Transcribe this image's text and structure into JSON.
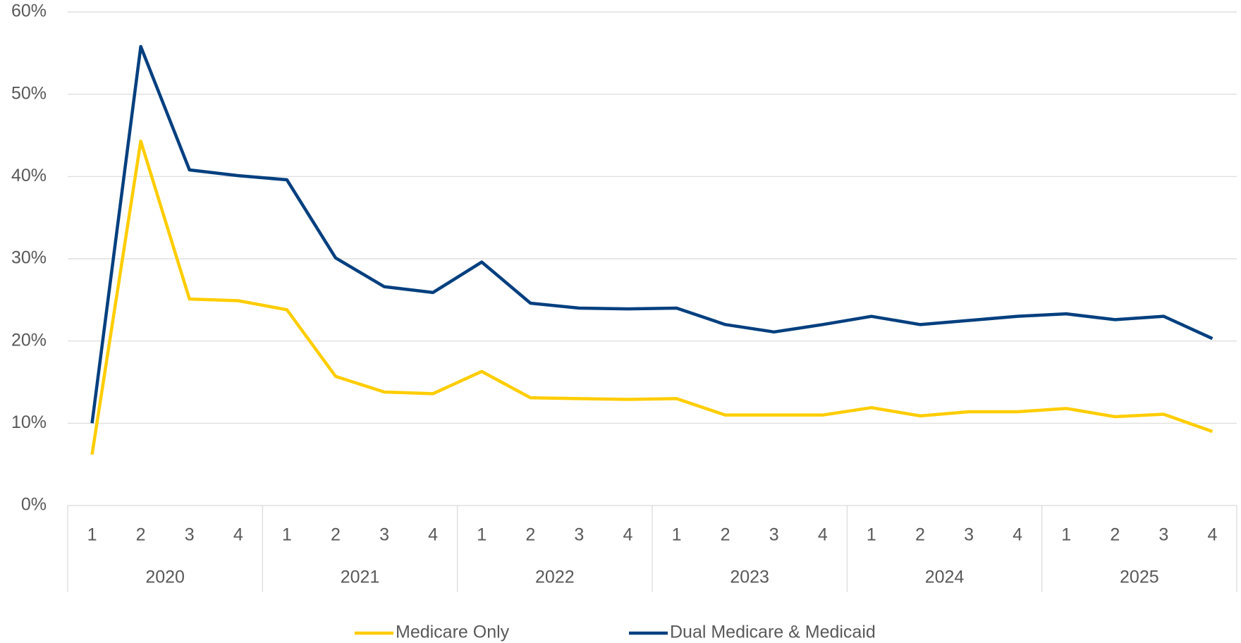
{
  "chart_data": {
    "type": "line",
    "categories": [
      "1",
      "2",
      "3",
      "4",
      "1",
      "2",
      "3",
      "4",
      "1",
      "2",
      "3",
      "4",
      "1",
      "2",
      "3",
      "4",
      "1",
      "2",
      "3",
      "4",
      "1",
      "2",
      "3",
      "4"
    ],
    "years": [
      "2020",
      "2021",
      "2022",
      "2023",
      "2024",
      "2025"
    ],
    "series": [
      {
        "name": "Medicare Only",
        "color": "#ffcd00",
        "values": [
          6.2,
          44.3,
          25.1,
          24.9,
          23.8,
          15.7,
          13.8,
          13.6,
          16.3,
          13.1,
          13.0,
          12.9,
          13.0,
          11.0,
          11.0,
          11.0,
          11.9,
          10.9,
          11.4,
          11.4,
          11.8,
          10.8,
          11.1,
          9.0
        ]
      },
      {
        "name": "Dual Medicare & Medicaid",
        "color": "#003f7f",
        "values": [
          10.0,
          55.8,
          40.8,
          40.1,
          39.6,
          30.1,
          26.6,
          25.9,
          29.6,
          24.6,
          24.0,
          23.9,
          24.0,
          22.0,
          21.1,
          22.0,
          23.0,
          22.0,
          22.5,
          23.0,
          23.3,
          22.6,
          23.0,
          20.3
        ]
      }
    ],
    "ylim": [
      0,
      60
    ],
    "yticks": [
      {
        "value": 0,
        "label": "0%"
      },
      {
        "value": 10,
        "label": "10%"
      },
      {
        "value": 20,
        "label": "20%"
      },
      {
        "value": 30,
        "label": "30%"
      },
      {
        "value": 40,
        "label": "40%"
      },
      {
        "value": 50,
        "label": "50%"
      },
      {
        "value": 60,
        "label": "60%"
      }
    ],
    "grid": true,
    "legend": "bottom"
  }
}
